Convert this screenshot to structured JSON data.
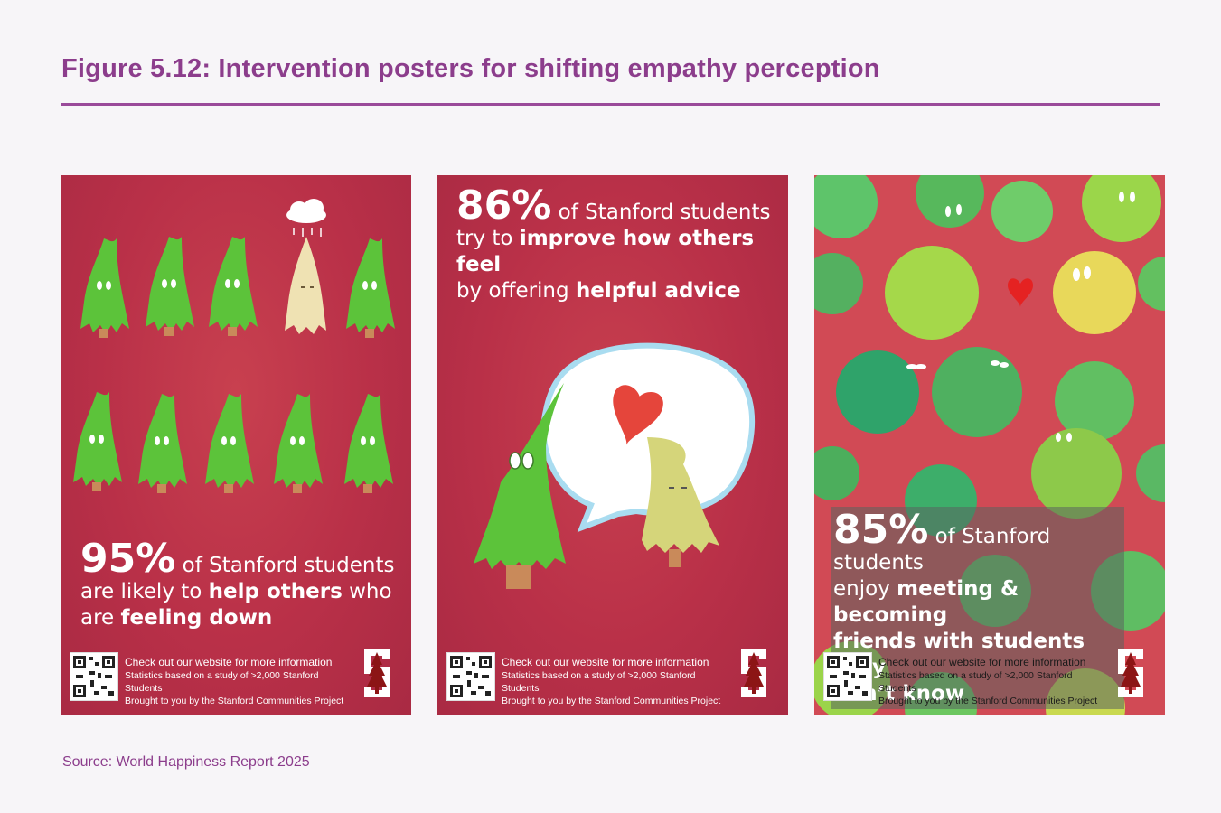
{
  "figure": {
    "title": "Figure 5.12: Intervention posters for shifting empathy perception",
    "source": "Source: World Happiness Report 2025"
  },
  "posters": [
    {
      "big": "95%",
      "line1": " of Stanford students",
      "line2_a": "are likely to ",
      "line2_b": "help others",
      "line2_c": " who",
      "line3_a": "are ",
      "line3_b": "feeling down"
    },
    {
      "big": "86%",
      "line1": " of Stanford students",
      "line2_a": "try to ",
      "line2_b": "improve how others feel",
      "line3_a": "by offering ",
      "line3_b": "helpful advice"
    },
    {
      "big": "85%",
      "line1": " of Stanford students",
      "line2_a": "enjoy ",
      "line2_b": "meeting & becoming",
      "line3_b": "friends with students they",
      "line4_b": "don’t know"
    }
  ],
  "footer": {
    "line1": "Check out our website for more information",
    "line2": "Statistics based on a study of >2,000 Stanford Students",
    "line3": "Brought to you by the Stanford Communities Project"
  },
  "colors": {
    "title": "#8c3d8c",
    "poster_red": "#b93048",
    "tree_green": "#5cc33a"
  }
}
